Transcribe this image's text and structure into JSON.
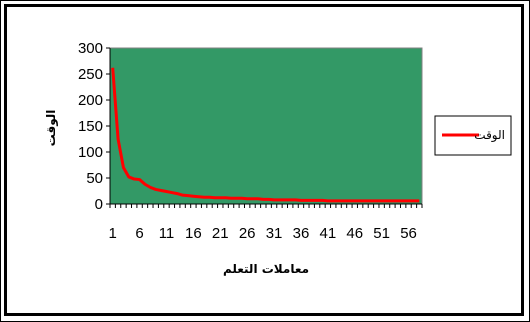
{
  "chart_data": {
    "type": "line",
    "title": "",
    "xlabel": "معاملات التعلم",
    "ylabel": "الوقت",
    "ylim": [
      0,
      300
    ],
    "yticks": [
      0,
      50,
      100,
      150,
      200,
      250,
      300
    ],
    "x": [
      1,
      2,
      3,
      4,
      5,
      6,
      7,
      8,
      9,
      10,
      11,
      12,
      13,
      14,
      15,
      16,
      17,
      18,
      19,
      20,
      21,
      22,
      23,
      24,
      25,
      26,
      27,
      28,
      29,
      30,
      31,
      32,
      33,
      34,
      35,
      36,
      37,
      38,
      39,
      40,
      41,
      42,
      43,
      44,
      45,
      46,
      47,
      48,
      49,
      50,
      51,
      52,
      53,
      54,
      55,
      56,
      57,
      58
    ],
    "xtick_labels": [
      "1",
      "6",
      "11",
      "16",
      "21",
      "26",
      "31",
      "36",
      "41",
      "46",
      "51",
      "56"
    ],
    "series": [
      {
        "name": "الوقت",
        "color": "#ff0000",
        "values": [
          262,
          125,
          70,
          52,
          48,
          47,
          38,
          32,
          28,
          26,
          24,
          22,
          20,
          17,
          16,
          15,
          14,
          13,
          13,
          12,
          12,
          12,
          11,
          11,
          11,
          10,
          10,
          10,
          9,
          9,
          8,
          8,
          8,
          8,
          8,
          7,
          7,
          7,
          7,
          7,
          6,
          6,
          6,
          6,
          6,
          6,
          6,
          6,
          6,
          6,
          6,
          6,
          6,
          6,
          6,
          6,
          6,
          6
        ]
      }
    ],
    "plot_background": "#339966",
    "legend_position": "right",
    "grid": false
  }
}
